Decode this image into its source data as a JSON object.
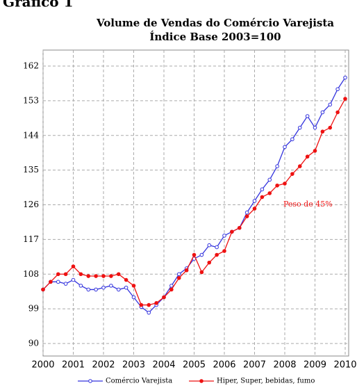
{
  "page_title": "Gráfico 1",
  "chart_data": {
    "type": "line",
    "title": "Volume de Vendas do Comércio Varejista",
    "subtitle": "Índice Base 2003=100",
    "annotation": "Peso de 45%",
    "x": [
      2000,
      2000.25,
      2000.5,
      2000.75,
      2001,
      2001.25,
      2001.5,
      2001.75,
      2002,
      2002.25,
      2002.5,
      2002.75,
      2003,
      2003.25,
      2003.5,
      2003.75,
      2004,
      2004.25,
      2004.5,
      2004.75,
      2005,
      2005.25,
      2005.5,
      2005.75,
      2006,
      2006.25,
      2006.5,
      2006.75,
      2007,
      2007.25,
      2007.5,
      2007.75,
      2008,
      2008.25,
      2008.5,
      2008.75,
      2009,
      2009.25,
      2009.5,
      2009.75,
      2010
    ],
    "series": [
      {
        "name": "Comércio Varejista",
        "color": "#3333dd",
        "marker": "open",
        "values": [
          104,
          106,
          106,
          105.5,
          106.5,
          105,
          104,
          104,
          104.5,
          105,
          104,
          104.5,
          102,
          99.5,
          98,
          100,
          102,
          105,
          108,
          109.5,
          112,
          113,
          115.5,
          115,
          118,
          119,
          120,
          124,
          127,
          130,
          132.5,
          136,
          141,
          143,
          146,
          149,
          146,
          150,
          152,
          156,
          159
        ]
      },
      {
        "name": "Hiper, Super, bebidas, fumo",
        "color": "#ee1111",
        "marker": "filled",
        "values": [
          104,
          106,
          108,
          108,
          110,
          108,
          107.5,
          107.5,
          107.5,
          107.5,
          108,
          106.5,
          105,
          100,
          100,
          100.5,
          102,
          104,
          107,
          109,
          113,
          108.5,
          111,
          113,
          114,
          119,
          120,
          123,
          125,
          128,
          129,
          131,
          131.5,
          134,
          136,
          138.5,
          140,
          145,
          146,
          150,
          153.5
        ]
      }
    ],
    "xlim": [
      2000,
      2010
    ],
    "xticks": [
      2000,
      2001,
      2002,
      2003,
      2004,
      2005,
      2006,
      2007,
      2008,
      2009,
      2010
    ],
    "ylim": [
      90,
      162
    ],
    "yticks": [
      90,
      99,
      108,
      117,
      126,
      135,
      144,
      153,
      162
    ],
    "grid": true
  }
}
